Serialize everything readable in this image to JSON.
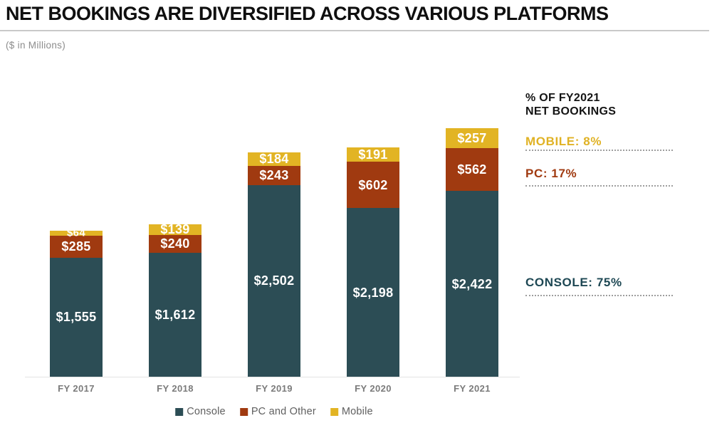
{
  "header": {
    "title": "NET BOOKINGS ARE DIVERSIFIED ACROSS VARIOUS PLATFORMS",
    "subtitle": "($ in Millions)"
  },
  "chart_data": {
    "type": "bar",
    "stacked": true,
    "title": "NET BOOKINGS ARE DIVERSIFIED ACROSS VARIOUS PLATFORMS",
    "ylabel": "($ in Millions)",
    "value_prefix": "$",
    "grid": false,
    "legend_position": "bottom",
    "categories": [
      "FY 2017",
      "FY 2018",
      "FY 2019",
      "FY 2020",
      "FY 2021"
    ],
    "series": [
      {
        "name": "Console",
        "color": "#2C4D55",
        "values": [
          1555,
          1612,
          2502,
          2198,
          2422
        ]
      },
      {
        "name": "PC and Other",
        "color": "#A03A10",
        "values": [
          285,
          240,
          243,
          602,
          562
        ]
      },
      {
        "name": "Mobile",
        "color": "#E2B424",
        "values": [
          64,
          139,
          184,
          191,
          257
        ]
      }
    ],
    "totals": [
      1904,
      1991,
      2929,
      2991,
      3241
    ]
  },
  "legend": {
    "items": [
      {
        "label": "Console",
        "color": "#2C4D55"
      },
      {
        "label": "PC and Other",
        "color": "#A03A10"
      },
      {
        "label": "Mobile",
        "color": "#E2B424"
      }
    ]
  },
  "side_panel": {
    "heading_line1": "% OF FY2021",
    "heading_line2": "NET BOOKINGS",
    "items": [
      {
        "label": "MOBILE: 8%",
        "color": "#E0B224"
      },
      {
        "label": "PC: 17%",
        "color": "#A03A10"
      },
      {
        "label": "CONSOLE: 75%",
        "color": "#1E4854"
      }
    ]
  }
}
